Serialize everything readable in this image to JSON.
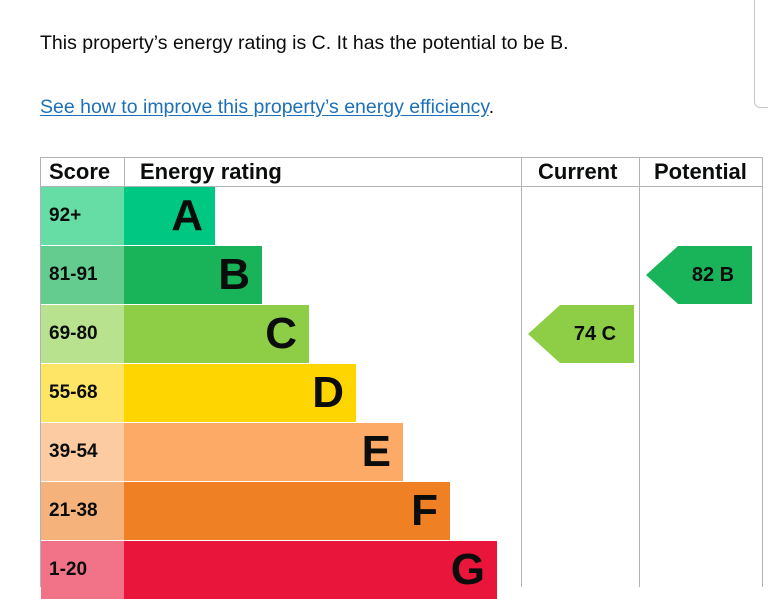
{
  "intro": "This property’s energy rating is C. It has the potential to be B.",
  "improve": {
    "link": "See how to improve this property’s energy efficiency",
    "suffix": "."
  },
  "epc": {
    "headers": {
      "score": "Score",
      "energy_rating": "Energy rating",
      "current": "Current",
      "potential": "Potential"
    },
    "bands": [
      {
        "score": "92+",
        "letter": "A",
        "color": "#00c781",
        "score_bg": "#66dda5"
      },
      {
        "score": "81-91",
        "letter": "B",
        "color": "#19b459",
        "score_bg": "#64cc8f"
      },
      {
        "score": "69-80",
        "letter": "C",
        "color": "#8dce46",
        "score_bg": "#b9e28e"
      },
      {
        "score": "55-68",
        "letter": "D",
        "color": "#ffd500",
        "score_bg": "#ffe566"
      },
      {
        "score": "39-54",
        "letter": "E",
        "color": "#fcaa65",
        "score_bg": "#fdcba1"
      },
      {
        "score": "21-38",
        "letter": "F",
        "color": "#ef8023",
        "score_bg": "#f5b27a"
      },
      {
        "score": "1-20",
        "letter": "G",
        "color": "#e9153b",
        "score_bg": "#f27388"
      }
    ],
    "current": {
      "value": "74",
      "letter": "C",
      "color": "#8dce46"
    },
    "potential": {
      "value": "82",
      "letter": "B",
      "color": "#19b459"
    }
  }
}
